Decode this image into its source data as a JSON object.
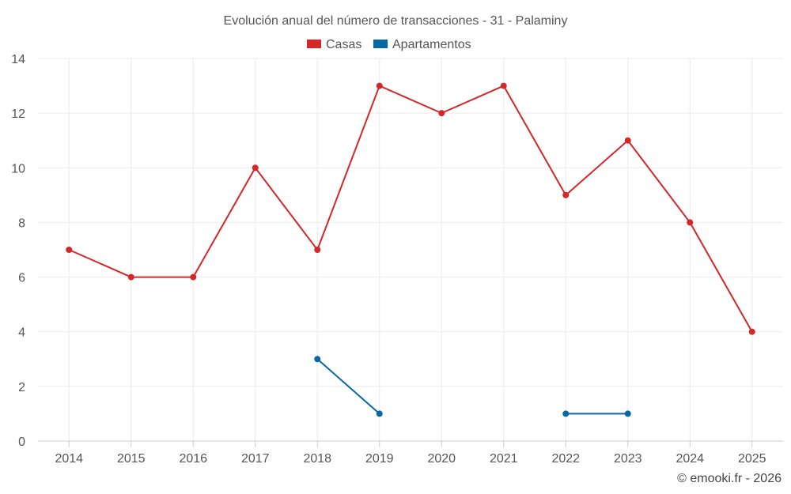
{
  "chart_data": {
    "type": "line",
    "title": "Evolución anual del número de transacciones - 31 - Palaminy",
    "categories": [
      "2014",
      "2015",
      "2016",
      "2017",
      "2018",
      "2019",
      "2020",
      "2021",
      "2022",
      "2023",
      "2024",
      "2025"
    ],
    "series": [
      {
        "name": "Casas",
        "color": "#d62728",
        "values": [
          7,
          6,
          6,
          10,
          7,
          13,
          12,
          13,
          9,
          11,
          8,
          4
        ]
      },
      {
        "name": "Apartamentos",
        "color": "#0868a4",
        "values": [
          null,
          null,
          null,
          null,
          3,
          1,
          null,
          null,
          1,
          1,
          null,
          null
        ]
      }
    ],
    "xlabel": "",
    "ylabel": "",
    "ylim": [
      0,
      14
    ],
    "yticks": [
      0,
      2,
      4,
      6,
      8,
      10,
      12,
      14
    ],
    "grid": true,
    "legend_position": "top-center"
  },
  "credit": "© emooki.fr - 2026"
}
